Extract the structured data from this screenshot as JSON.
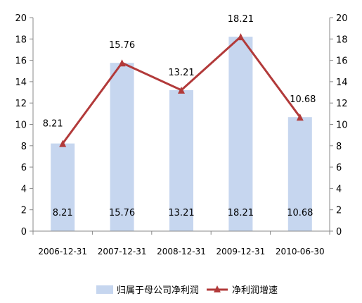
{
  "chart_data": {
    "type": "bar",
    "categories": [
      "2006-12-31",
      "2007-12-31",
      "2008-12-31",
      "2009-12-31",
      "2010-06-30"
    ],
    "series": [
      {
        "name": "归属于母公司净利润",
        "type": "bar",
        "axis": "left",
        "values": [
          8.21,
          15.76,
          13.21,
          18.21,
          10.68
        ]
      },
      {
        "name": "净利润增速",
        "type": "line",
        "axis": "right",
        "values": [
          8.21,
          15.76,
          13.21,
          18.21,
          10.68
        ]
      }
    ],
    "bar_labels": [
      "8.21",
      "15.76",
      "13.21",
      "18.21",
      "10.68"
    ],
    "line_labels": [
      "8.21",
      "15.76",
      "13.21",
      "18.21",
      "10.68"
    ],
    "ylim": [
      0,
      20
    ],
    "y2lim": [
      0,
      20
    ],
    "yticks": [
      "0",
      "2",
      "4",
      "6",
      "8",
      "10",
      "12",
      "14",
      "16",
      "18",
      "20"
    ],
    "y2ticks": [
      "0",
      "2",
      "4",
      "6",
      "8",
      "10",
      "12",
      "14",
      "16",
      "18",
      "20"
    ],
    "grid": false,
    "legend_position": "bottom",
    "colors": {
      "bar": "#c6d6ef",
      "line": "#b23a3a",
      "axis": "#888888"
    }
  }
}
